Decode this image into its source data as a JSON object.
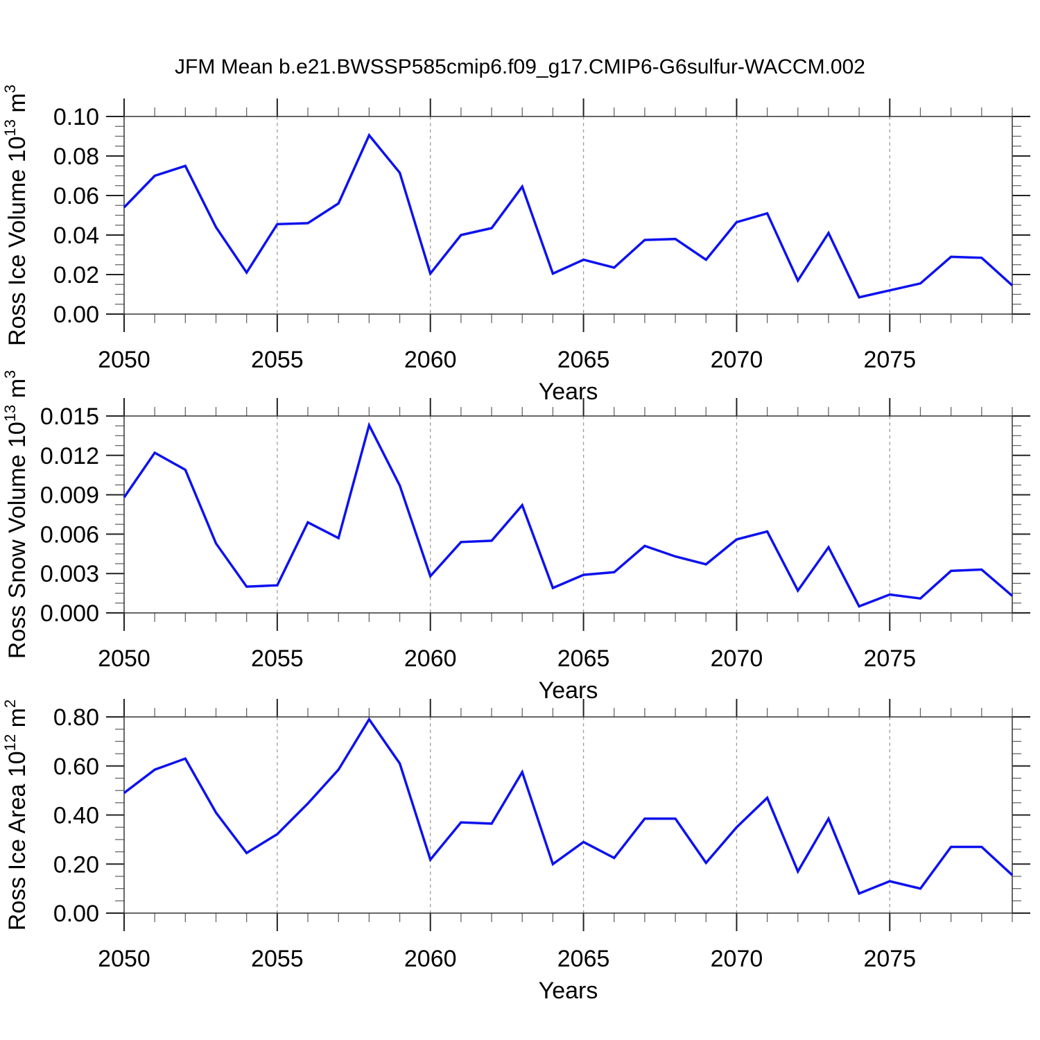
{
  "title": "JFM Mean b.e21.BWSSP585cmip6.f09_g17.CMIP6-G6sulfur-WACCM.002",
  "colors": {
    "series_line": "#0d12ee",
    "axis": "#333333",
    "major_tick": "#222222",
    "minor_tick": "#666666",
    "gridline": "#9a9a9a",
    "background": "#ffffff",
    "text": "#000000"
  },
  "chart_data": [
    {
      "type": "line",
      "name": "ice-volume",
      "ylabel": "Ross Ice Volume 10^13 m^3",
      "ylabel_segments": [
        {
          "text": "Ross Ice Volume 10"
        },
        {
          "text": "13",
          "super": true
        },
        {
          "text": " m"
        },
        {
          "text": "3",
          "super": true
        }
      ],
      "xlabel": "Years",
      "x": [
        2050,
        2051,
        2052,
        2053,
        2054,
        2055,
        2056,
        2057,
        2058,
        2059,
        2060,
        2061,
        2062,
        2063,
        2064,
        2065,
        2066,
        2067,
        2068,
        2069,
        2070,
        2071,
        2072,
        2073,
        2074,
        2075,
        2076,
        2077,
        2078,
        2079
      ],
      "values": [
        0.054,
        0.07,
        0.075,
        0.044,
        0.021,
        0.0455,
        0.046,
        0.056,
        0.0905,
        0.0715,
        0.0205,
        0.04,
        0.0435,
        0.0645,
        0.0205,
        0.0275,
        0.0235,
        0.0375,
        0.038,
        0.0275,
        0.0465,
        0.051,
        0.017,
        0.041,
        0.0085,
        0.012,
        0.0155,
        0.029,
        0.0285,
        0.0145
      ],
      "xlim": [
        2050,
        2079
      ],
      "ylim": [
        0.0,
        0.1
      ],
      "ytick_values": [
        0.0,
        0.02,
        0.04,
        0.06,
        0.08,
        0.1
      ],
      "ytick_labels": [
        "0.00",
        "0.02",
        "0.04",
        "0.06",
        "0.08",
        "0.10"
      ],
      "y_minor_step": 0.005,
      "xtick_values": [
        2050,
        2055,
        2060,
        2065,
        2070,
        2075
      ],
      "xtick_labels": [
        "2050",
        "2055",
        "2060",
        "2065",
        "2070",
        "2075"
      ],
      "x_minor_step": 1,
      "gridlines_x": [
        2055,
        2060,
        2065,
        2070,
        2075
      ],
      "grid_style": "vertical-dashed",
      "legend": null
    },
    {
      "type": "line",
      "name": "snow-volume",
      "ylabel": "Ross Snow Volume 10^13 m^3",
      "ylabel_segments": [
        {
          "text": "Ross Snow Volume 10"
        },
        {
          "text": "13",
          "super": true
        },
        {
          "text": " m"
        },
        {
          "text": "3",
          "super": true
        }
      ],
      "xlabel": "Years",
      "x": [
        2050,
        2051,
        2052,
        2053,
        2054,
        2055,
        2056,
        2057,
        2058,
        2059,
        2060,
        2061,
        2062,
        2063,
        2064,
        2065,
        2066,
        2067,
        2068,
        2069,
        2070,
        2071,
        2072,
        2073,
        2074,
        2075,
        2076,
        2077,
        2078,
        2079
      ],
      "values": [
        0.0088,
        0.0122,
        0.0109,
        0.0053,
        0.002,
        0.0021,
        0.0069,
        0.0057,
        0.0143,
        0.0097,
        0.0028,
        0.0054,
        0.0055,
        0.0082,
        0.0019,
        0.0029,
        0.0031,
        0.0051,
        0.0043,
        0.0037,
        0.0056,
        0.0062,
        0.0017,
        0.005,
        0.0005,
        0.0014,
        0.0011,
        0.0032,
        0.0033,
        0.0013
      ],
      "xlim": [
        2050,
        2079
      ],
      "ylim": [
        0.0,
        0.015
      ],
      "ytick_values": [
        0.0,
        0.003,
        0.006,
        0.009,
        0.012,
        0.015
      ],
      "ytick_labels": [
        "0.000",
        "0.003",
        "0.006",
        "0.009",
        "0.012",
        "0.015"
      ],
      "y_minor_step": 0.00075,
      "xtick_values": [
        2050,
        2055,
        2060,
        2065,
        2070,
        2075
      ],
      "xtick_labels": [
        "2050",
        "2055",
        "2060",
        "2065",
        "2070",
        "2075"
      ],
      "x_minor_step": 1,
      "gridlines_x": [
        2055,
        2060,
        2065,
        2070,
        2075
      ],
      "grid_style": "vertical-dashed",
      "legend": null
    },
    {
      "type": "line",
      "name": "ice-area",
      "ylabel": "Ross Ice Area 10^12 m^2",
      "ylabel_segments": [
        {
          "text": "Ross Ice Area 10"
        },
        {
          "text": "12",
          "super": true
        },
        {
          "text": " m"
        },
        {
          "text": "2",
          "super": true
        }
      ],
      "xlabel": "Years",
      "x": [
        2050,
        2051,
        2052,
        2053,
        2054,
        2055,
        2056,
        2057,
        2058,
        2059,
        2060,
        2061,
        2062,
        2063,
        2064,
        2065,
        2066,
        2067,
        2068,
        2069,
        2070,
        2071,
        2072,
        2073,
        2074,
        2075,
        2076,
        2077,
        2078,
        2079
      ],
      "values": [
        0.49,
        0.585,
        0.63,
        0.41,
        0.245,
        0.322,
        0.447,
        0.585,
        0.79,
        0.61,
        0.218,
        0.37,
        0.365,
        0.575,
        0.2,
        0.29,
        0.225,
        0.385,
        0.385,
        0.205,
        0.35,
        0.47,
        0.17,
        0.385,
        0.08,
        0.13,
        0.1,
        0.27,
        0.27,
        0.155
      ],
      "xlim": [
        2050,
        2079
      ],
      "ylim": [
        0.0,
        0.8
      ],
      "ytick_values": [
        0.0,
        0.2,
        0.4,
        0.6,
        0.8
      ],
      "ytick_labels": [
        "0.00",
        "0.20",
        "0.40",
        "0.60",
        "0.80"
      ],
      "y_minor_step": 0.05,
      "xtick_values": [
        2050,
        2055,
        2060,
        2065,
        2070,
        2075
      ],
      "xtick_labels": [
        "2050",
        "2055",
        "2060",
        "2065",
        "2070",
        "2075"
      ],
      "x_minor_step": 1,
      "gridlines_x": [
        2055,
        2060,
        2065,
        2070,
        2075
      ],
      "grid_style": "vertical-dashed",
      "legend": null
    }
  ]
}
